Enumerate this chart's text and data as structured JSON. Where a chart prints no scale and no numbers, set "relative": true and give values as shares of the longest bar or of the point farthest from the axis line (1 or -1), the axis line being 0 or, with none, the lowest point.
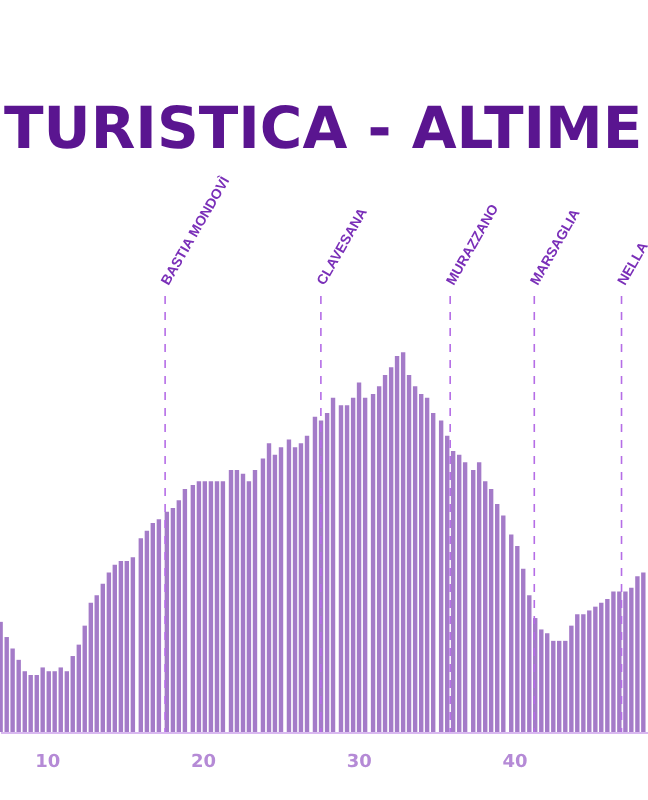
{
  "chart_data": {
    "type": "bar",
    "title": "TURISTICA - ALTIME",
    "relative": true,
    "color": "#a47bc8",
    "x": [
      7.04,
      7.43,
      7.81,
      8.2,
      8.59,
      8.97,
      9.36,
      9.74,
      10.13,
      10.51,
      10.9,
      11.29,
      11.67,
      12.06,
      12.44,
      12.83,
      13.21,
      13.6,
      13.99,
      14.37,
      14.76,
      15.14,
      15.53,
      16.04,
      16.43,
      16.81,
      17.2,
      17.71,
      18.1,
      18.48,
      18.87,
      19.38,
      19.77,
      20.15,
      20.54,
      20.93,
      21.31,
      21.83,
      22.21,
      22.6,
      22.98,
      23.37,
      23.88,
      24.27,
      24.65,
      25.04,
      25.55,
      25.94,
      26.32,
      26.71,
      27.22,
      27.61,
      28.0,
      28.38,
      28.89,
      29.28,
      29.67,
      30.05,
      30.44,
      30.95,
      31.34,
      31.72,
      32.11,
      32.49,
      32.88,
      33.26,
      33.65,
      34.04,
      34.42,
      34.81,
      35.32,
      35.71,
      36.09,
      36.48,
      36.86,
      37.38,
      37.76,
      38.15,
      38.53,
      38.92,
      39.31,
      39.82,
      40.21,
      40.59,
      40.98,
      41.36,
      41.75,
      42.13,
      42.52,
      42.9,
      43.29,
      43.68,
      44.06,
      44.45,
      44.83,
      45.22,
      45.6,
      45.99,
      46.38,
      46.76,
      47.15,
      47.53,
      47.92,
      48.3
    ],
    "values": [
      0.29,
      0.25,
      0.22,
      0.19,
      0.16,
      0.15,
      0.15,
      0.17,
      0.16,
      0.16,
      0.17,
      0.16,
      0.2,
      0.23,
      0.28,
      0.34,
      0.36,
      0.39,
      0.42,
      0.44,
      0.45,
      0.45,
      0.46,
      0.51,
      0.53,
      0.55,
      0.56,
      0.58,
      0.59,
      0.61,
      0.64,
      0.65,
      0.66,
      0.66,
      0.66,
      0.66,
      0.66,
      0.69,
      0.69,
      0.68,
      0.66,
      0.69,
      0.72,
      0.76,
      0.73,
      0.75,
      0.77,
      0.75,
      0.76,
      0.78,
      0.83,
      0.82,
      0.84,
      0.88,
      0.86,
      0.86,
      0.88,
      0.92,
      0.88,
      0.89,
      0.91,
      0.94,
      0.96,
      0.99,
      1,
      0.94,
      0.91,
      0.89,
      0.88,
      0.84,
      0.82,
      0.78,
      0.74,
      0.73,
      0.71,
      0.69,
      0.71,
      0.66,
      0.64,
      0.6,
      0.57,
      0.52,
      0.49,
      0.43,
      0.36,
      0.3,
      0.27,
      0.26,
      0.24,
      0.24,
      0.24,
      0.28,
      0.31,
      0.31,
      0.32,
      0.33,
      0.34,
      0.35,
      0.37,
      0.37,
      0.37,
      0.38,
      0.41,
      0.42
    ],
    "xlim": [
      7.0,
      48.6
    ],
    "xticks": [
      10,
      20,
      30,
      40
    ],
    "ref_lines": [
      {
        "axis": "x",
        "value": 17.6,
        "label": "BASTIA MONDOVÌ",
        "color": "#b56de6",
        "line_style": "dashed"
      },
      {
        "axis": "x",
        "value": 27.6,
        "label": "CLAVESANA",
        "color": "#b56de6",
        "line_style": "dashed"
      },
      {
        "axis": "x",
        "value": 35.9,
        "label": "MURAZZANO",
        "color": "#b56de6",
        "line_style": "dashed"
      },
      {
        "axis": "x",
        "value": 41.3,
        "label": "MARSAGLIA",
        "color": "#b56de6",
        "line_style": "dashed"
      },
      {
        "axis": "x",
        "value": 46.9,
        "label": "NELLA",
        "color": "#b56de6",
        "line_style": "dashed"
      }
    ]
  }
}
